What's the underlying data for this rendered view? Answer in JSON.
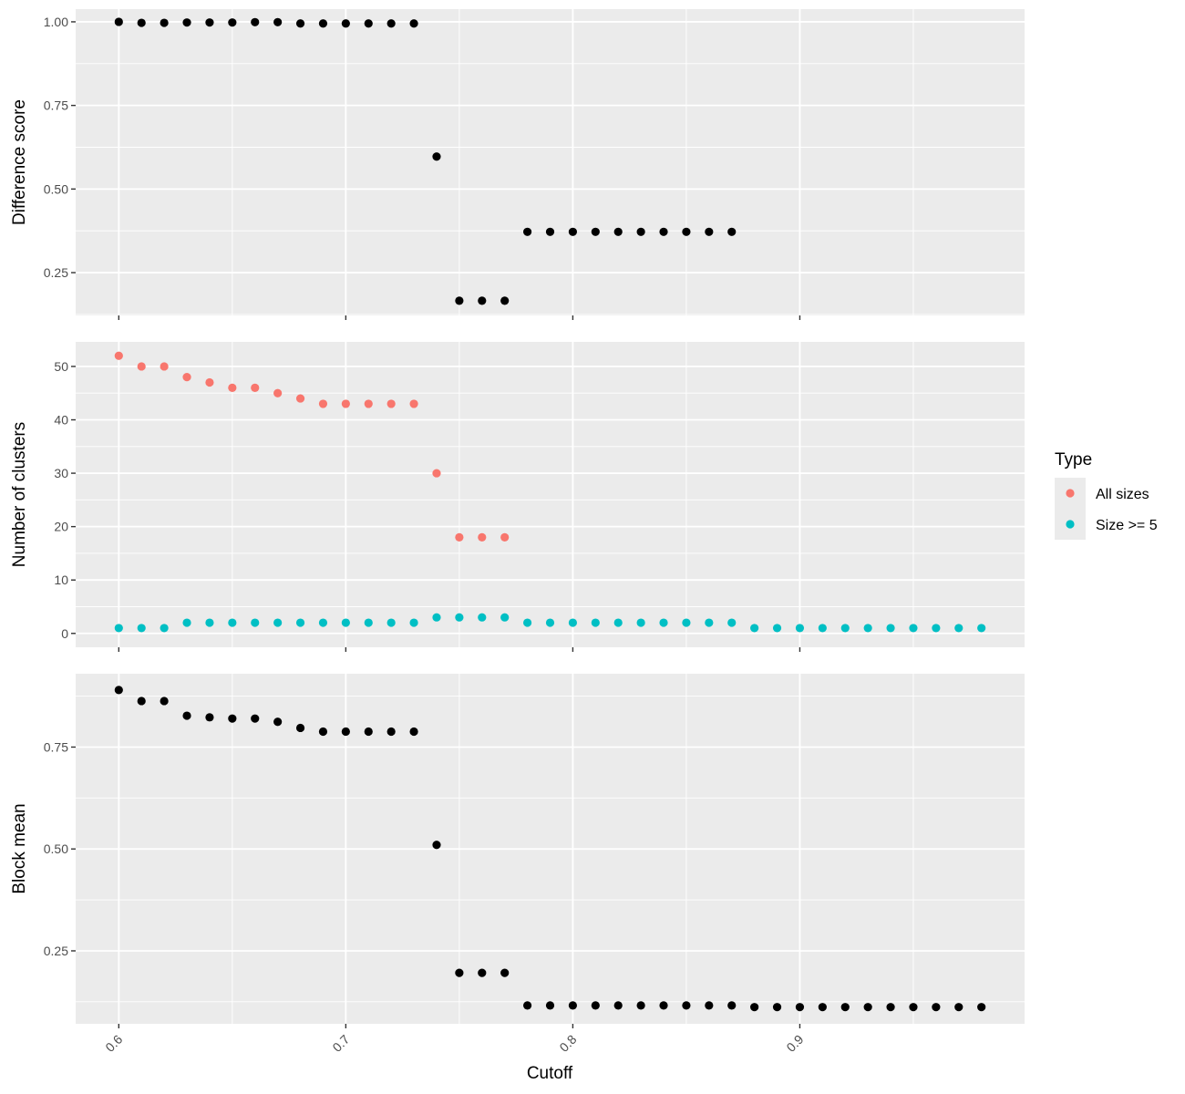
{
  "chart_data": {
    "type": "scatter",
    "xlabel": "Cutoff",
    "xlim": [
      0.581,
      0.999
    ],
    "x_ticks": [
      0.6,
      0.7,
      0.8,
      0.9
    ],
    "x_tick_labels": [
      "0.6",
      "0.7",
      "0.8",
      "0.9"
    ],
    "grid": true,
    "panel_background": "#ebebeb",
    "grid_color": "#ffffff",
    "legend": {
      "title": "Type",
      "placement": "right",
      "entries": [
        {
          "label": "All sizes",
          "color": "#f8766d"
        },
        {
          "label": "Size >= 5",
          "color": "#00bfc4"
        }
      ]
    },
    "panels": [
      {
        "ylabel": "Difference score",
        "ylim": [
          0.122,
          1.038
        ],
        "y_ticks": [
          0.25,
          0.5,
          0.75,
          1.0
        ],
        "y_tick_labels": [
          "0.25",
          "0.50",
          "0.75",
          "1.00"
        ],
        "series": [
          {
            "color": "#000000",
            "x": [
              0.6,
              0.61,
              0.62,
              0.63,
              0.64,
              0.65,
              0.66,
              0.67,
              0.68,
              0.69,
              0.7,
              0.71,
              0.72,
              0.73,
              0.74,
              0.75,
              0.76,
              0.77,
              0.78,
              0.79,
              0.8,
              0.81,
              0.82,
              0.83,
              0.84,
              0.85,
              0.86,
              0.87
            ],
            "y": [
              1.0,
              0.997,
              0.997,
              0.998,
              0.998,
              0.998,
              0.999,
              0.999,
              0.995,
              0.995,
              0.995,
              0.995,
              0.995,
              0.995,
              0.597,
              0.166,
              0.166,
              0.166,
              0.372,
              0.372,
              0.372,
              0.372,
              0.372,
              0.372,
              0.372,
              0.372,
              0.372,
              0.372
            ]
          }
        ]
      },
      {
        "ylabel": "Number of clusters",
        "ylim": [
          -2.6,
          54.6
        ],
        "y_ticks": [
          0,
          10,
          20,
          30,
          40,
          50
        ],
        "y_tick_labels": [
          "0",
          "10",
          "20",
          "30",
          "40",
          "50"
        ],
        "series": [
          {
            "name": "All sizes",
            "color": "#f8766d",
            "x": [
              0.6,
              0.61,
              0.62,
              0.63,
              0.64,
              0.65,
              0.66,
              0.67,
              0.68,
              0.69,
              0.7,
              0.71,
              0.72,
              0.73,
              0.74,
              0.75,
              0.76,
              0.77
            ],
            "y": [
              52,
              50,
              50,
              48,
              47,
              46,
              46,
              45,
              44,
              43,
              43,
              43,
              43,
              43,
              30,
              18,
              18,
              18
            ]
          },
          {
            "name": "Size >= 5",
            "color": "#00bfc4",
            "x": [
              0.6,
              0.61,
              0.62,
              0.63,
              0.64,
              0.65,
              0.66,
              0.67,
              0.68,
              0.69,
              0.7,
              0.71,
              0.72,
              0.73,
              0.74,
              0.75,
              0.76,
              0.77,
              0.78,
              0.79,
              0.8,
              0.81,
              0.82,
              0.83,
              0.84,
              0.85,
              0.86,
              0.87,
              0.88,
              0.89,
              0.9,
              0.91,
              0.92,
              0.93,
              0.94,
              0.95,
              0.96,
              0.97,
              0.98
            ],
            "y": [
              1,
              1,
              1,
              2,
              2,
              2,
              2,
              2,
              2,
              2,
              2,
              2,
              2,
              2,
              3,
              3,
              3,
              3,
              2,
              2,
              2,
              2,
              2,
              2,
              2,
              2,
              2,
              2,
              1,
              1,
              1,
              1,
              1,
              1,
              1,
              1,
              1,
              1,
              1
            ]
          }
        ]
      },
      {
        "ylabel": "Block mean",
        "ylim": [
          0.071,
          0.93
        ],
        "y_ticks": [
          0.25,
          0.5,
          0.75
        ],
        "y_tick_labels": [
          "0.25",
          "0.50",
          "0.75"
        ],
        "series": [
          {
            "color": "#000000",
            "x": [
              0.6,
              0.61,
              0.62,
              0.63,
              0.64,
              0.65,
              0.66,
              0.67,
              0.68,
              0.69,
              0.7,
              0.71,
              0.72,
              0.73,
              0.74,
              0.75,
              0.76,
              0.77,
              0.78,
              0.79,
              0.8,
              0.81,
              0.82,
              0.83,
              0.84,
              0.85,
              0.86,
              0.87,
              0.88,
              0.89,
              0.9,
              0.91,
              0.92,
              0.93,
              0.94,
              0.95,
              0.96,
              0.97,
              0.98
            ],
            "y": [
              0.89,
              0.863,
              0.863,
              0.827,
              0.823,
              0.82,
              0.82,
              0.812,
              0.797,
              0.788,
              0.788,
              0.788,
              0.788,
              0.788,
              0.51,
              0.196,
              0.196,
              0.196,
              0.116,
              0.116,
              0.116,
              0.116,
              0.116,
              0.116,
              0.116,
              0.116,
              0.116,
              0.116,
              0.112,
              0.112,
              0.112,
              0.112,
              0.112,
              0.112,
              0.112,
              0.112,
              0.112,
              0.112,
              0.112
            ]
          }
        ]
      }
    ]
  }
}
